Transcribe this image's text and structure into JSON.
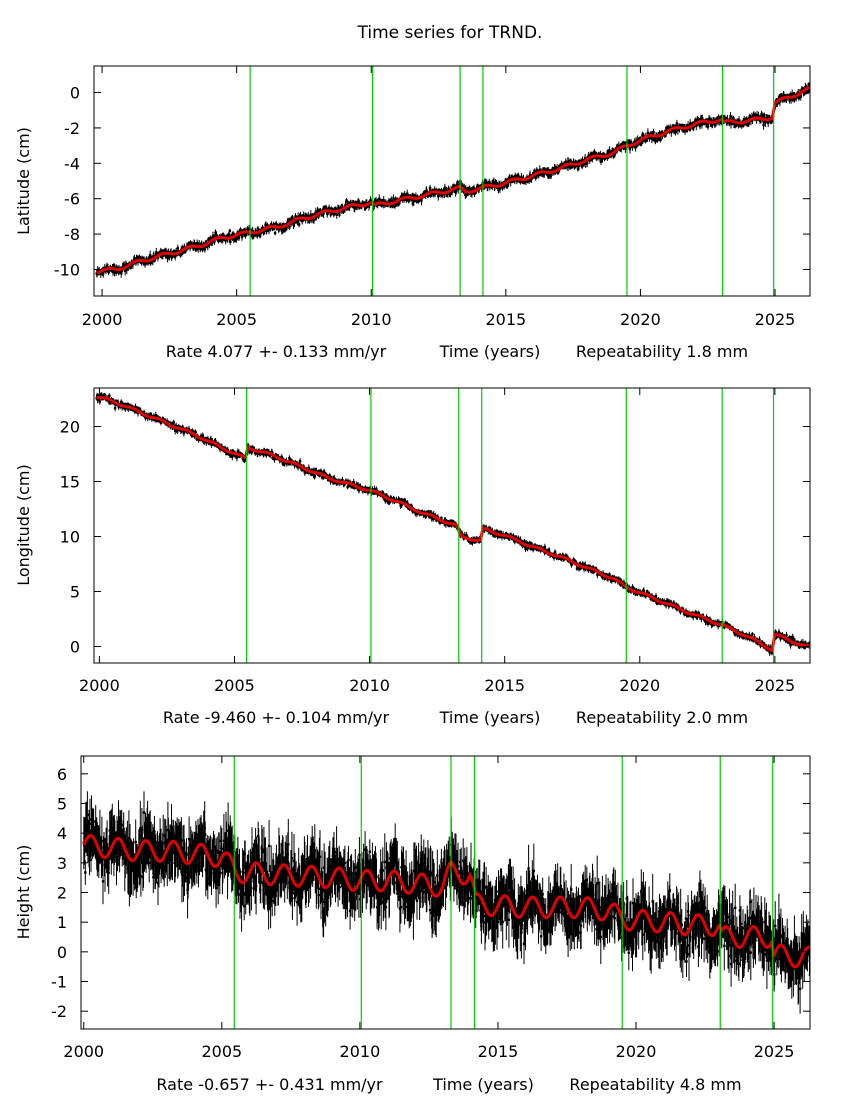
{
  "title": "Time series for TRND.",
  "chart_data": [
    {
      "type": "scatter",
      "ylabel": "Latitude (cm)",
      "footer": {
        "rate": "Rate 4.077 +- 0.133 mm/yr",
        "xlabel": "Time (years)",
        "repeatability": "Repeatability 1.8 mm"
      },
      "xlim": [
        1999.7,
        2026.3
      ],
      "ylim": [
        -11.5,
        1.5
      ],
      "xticks": [
        2000,
        2005,
        2010,
        2015,
        2020,
        2025
      ],
      "yticks": [
        0,
        -2,
        -4,
        -6,
        -8,
        -10
      ],
      "breaks": [
        2005.5,
        2010.05,
        2013.3,
        2014.15,
        2019.5,
        2023.05,
        2024.95
      ],
      "series": [
        {
          "values": [
            [
              1999.8,
              -10.1
            ],
            [
              2000.5,
              -10.0
            ],
            [
              2001.5,
              -9.5
            ],
            [
              2002.5,
              -9.1
            ],
            [
              2003.5,
              -8.7
            ],
            [
              2004.5,
              -8.2
            ],
            [
              2005.5,
              -7.9
            ],
            [
              2006.5,
              -7.6
            ],
            [
              2007.5,
              -7.1
            ],
            [
              2008.5,
              -6.7
            ],
            [
              2010.0,
              -6.2
            ],
            [
              2010.1,
              -6.4
            ],
            [
              2011.0,
              -6.1
            ],
            [
              2012.0,
              -5.8
            ],
            [
              2013.3,
              -5.4
            ],
            [
              2013.5,
              -5.6
            ],
            [
              2014.1,
              -5.4
            ],
            [
              2015.0,
              -5.1
            ],
            [
              2016.0,
              -4.7
            ],
            [
              2017.0,
              -4.3
            ],
            [
              2018.0,
              -3.8
            ],
            [
              2019.0,
              -3.4
            ],
            [
              2019.5,
              -3.0
            ],
            [
              2020.0,
              -2.7
            ],
            [
              2021.0,
              -2.2
            ],
            [
              2022.0,
              -1.8
            ],
            [
              2023.0,
              -1.5
            ],
            [
              2023.1,
              -1.7
            ],
            [
              2024.0,
              -1.6
            ],
            [
              2024.9,
              -1.4
            ],
            [
              2025.0,
              -0.6
            ],
            [
              2025.6,
              -0.2
            ],
            [
              2026.3,
              0.2
            ]
          ],
          "color": "#000000"
        }
      ],
      "model_color": "#e00000",
      "break_color": "#00cc00"
    },
    {
      "type": "scatter",
      "ylabel": "Longitude (cm)",
      "footer": {
        "rate": "Rate -9.460 +- 0.104 mm/yr",
        "xlabel": "Time (years)",
        "repeatability": "Repeatability 2.0 mm"
      },
      "xlim": [
        1999.8,
        2026.3
      ],
      "ylim": [
        -1.5,
        23.5
      ],
      "xticks": [
        2000,
        2005,
        2010,
        2015,
        2020,
        2025
      ],
      "yticks": [
        20,
        15,
        10,
        5,
        0
      ],
      "breaks": [
        2005.45,
        2010.05,
        2013.3,
        2014.15,
        2019.5,
        2023.05,
        2024.95
      ],
      "series": [
        {
          "values": [
            [
              1999.9,
              22.7
            ],
            [
              2000.5,
              22.3
            ],
            [
              2001.5,
              21.3
            ],
            [
              2002.5,
              20.3
            ],
            [
              2003.5,
              19.3
            ],
            [
              2004.5,
              18.1
            ],
            [
              2005.4,
              17.1
            ],
            [
              2005.5,
              18.1
            ],
            [
              2006.5,
              17.3
            ],
            [
              2007.5,
              16.3
            ],
            [
              2008.5,
              15.3
            ],
            [
              2010.0,
              14.2
            ],
            [
              2011.0,
              13.2
            ],
            [
              2012.0,
              12.1
            ],
            [
              2013.2,
              11.0
            ],
            [
              2013.4,
              10.0
            ],
            [
              2014.1,
              9.6
            ],
            [
              2014.2,
              10.7
            ],
            [
              2015.0,
              10.1
            ],
            [
              2016.0,
              9.1
            ],
            [
              2017.0,
              8.2
            ],
            [
              2018.0,
              7.2
            ],
            [
              2019.0,
              6.2
            ],
            [
              2019.5,
              5.4
            ],
            [
              2020.0,
              4.9
            ],
            [
              2021.0,
              3.9
            ],
            [
              2022.0,
              2.9
            ],
            [
              2023.0,
              2.0
            ],
            [
              2024.0,
              0.9
            ],
            [
              2024.9,
              -0.3
            ],
            [
              2025.0,
              1.1
            ],
            [
              2025.6,
              0.5
            ],
            [
              2026.3,
              -0.1
            ]
          ],
          "color": "#000000"
        }
      ],
      "model_color": "#e00000",
      "break_color": "#00cc00"
    },
    {
      "type": "scatter",
      "ylabel": "Height (cm)",
      "footer": {
        "rate": "Rate -0.657 +- 0.431 mm/yr",
        "xlabel": "Time (years)",
        "repeatability": "Repeatability 4.8 mm"
      },
      "xlim": [
        1999.9,
        2026.3
      ],
      "ylim": [
        -2.6,
        6.6
      ],
      "xticks": [
        2000,
        2005,
        2010,
        2015,
        2020,
        2025
      ],
      "yticks": [
        6,
        5,
        4,
        3,
        2,
        1,
        0,
        -1,
        -2
      ],
      "breaks": [
        2005.45,
        2010.05,
        2013.3,
        2014.15,
        2019.5,
        2023.05,
        2024.95
      ],
      "series": [
        {
          "values": [
            [
              2000.0,
              3.6
            ],
            [
              2001.0,
              3.5
            ],
            [
              2002.0,
              3.4
            ],
            [
              2003.0,
              3.4
            ],
            [
              2004.0,
              3.3
            ],
            [
              2005.0,
              3.2
            ],
            [
              2005.5,
              2.7
            ],
            [
              2007.0,
              2.6
            ],
            [
              2009.0,
              2.5
            ],
            [
              2010.0,
              2.4
            ],
            [
              2011.0,
              2.4
            ],
            [
              2012.0,
              2.3
            ],
            [
              2013.0,
              2.2
            ],
            [
              2013.3,
              2.7
            ],
            [
              2014.0,
              2.6
            ],
            [
              2014.2,
              1.6
            ],
            [
              2016.0,
              1.5
            ],
            [
              2018.0,
              1.5
            ],
            [
              2019.0,
              1.4
            ],
            [
              2019.5,
              1.1
            ],
            [
              2021.0,
              1.0
            ],
            [
              2022.0,
              0.9
            ],
            [
              2023.0,
              0.9
            ],
            [
              2023.1,
              0.5
            ],
            [
              2024.9,
              0.5
            ],
            [
              2025.0,
              -0.1
            ],
            [
              2026.3,
              -0.2
            ]
          ],
          "color": "#000000"
        }
      ],
      "model_color": "#e00000",
      "break_color": "#00cc00"
    }
  ]
}
